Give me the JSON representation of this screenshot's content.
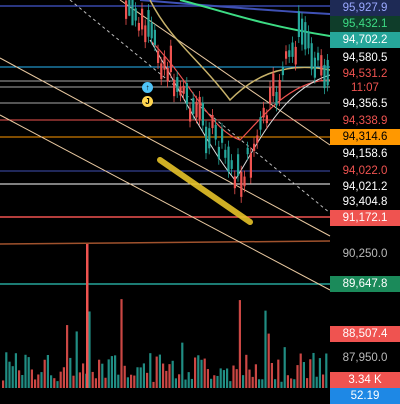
{
  "price_axis": {
    "labels": [
      {
        "text": "95,927.9",
        "bg": "#1e2a55",
        "fg": "#9aa8ff"
      },
      {
        "text": "95,432.1",
        "bg": "#0f3d2a",
        "fg": "#3ddc84"
      },
      {
        "text": "94,702.2",
        "bg": "#26a69a",
        "fg": "#ffffff"
      },
      {
        "text": "94,580.5",
        "bg": "#000000",
        "fg": "#ffffff"
      },
      {
        "text": "94,531.2",
        "bg": "#000000",
        "fg": "#ef5350"
      },
      {
        "text": "11:07",
        "bg": "#000000",
        "fg": "#ef5350"
      },
      {
        "text": "94,356.5",
        "bg": "#000000",
        "fg": "#ffffff"
      },
      {
        "text": "94,338.9",
        "bg": "#000000",
        "fg": "#ef5350"
      },
      {
        "text": "94,314.6",
        "bg": "#ff9800",
        "fg": "#000000"
      },
      {
        "text": "94,158.6",
        "bg": "#000000",
        "fg": "#ffffff"
      },
      {
        "text": "94,022.0",
        "bg": "#000000",
        "fg": "#ef5350"
      },
      {
        "text": "94,021.2",
        "bg": "#000000",
        "fg": "#ffffff"
      },
      {
        "text": "93,404.8",
        "bg": "#000000",
        "fg": "#ffffff"
      },
      {
        "text": "91,172.1",
        "bg": "#ef5350",
        "fg": "#ffffff"
      },
      {
        "text": "90,250.0",
        "bg": "#000000",
        "fg": "#bbbbbb"
      },
      {
        "text": "89,647.8",
        "bg": "#1b8a5a",
        "fg": "#ffffff"
      },
      {
        "text": "88,507.4",
        "bg": "#ef5350",
        "fg": "#ffffff"
      },
      {
        "text": "87,950.0",
        "bg": "#000000",
        "fg": "#bbbbbb"
      },
      {
        "text": "3.34 K",
        "bg": "#ef5350",
        "fg": "#ffffff"
      },
      {
        "text": "52.19",
        "bg": "#1e88e5",
        "fg": "#ffffff"
      }
    ]
  },
  "colors": {
    "up": "#26a69a",
    "down": "#ef5350",
    "highlight": "#e6c229",
    "ma_long": "#9c27b0",
    "ma_green": "#3ddc84",
    "ma_yellow": "#c8b26a"
  },
  "markers": [
    {
      "name": "alert-marker-1",
      "symbol": "↑",
      "color": "#4fc3f7"
    },
    {
      "name": "alert-marker-2",
      "symbol": "J",
      "color": "#ffd54f"
    }
  ]
}
